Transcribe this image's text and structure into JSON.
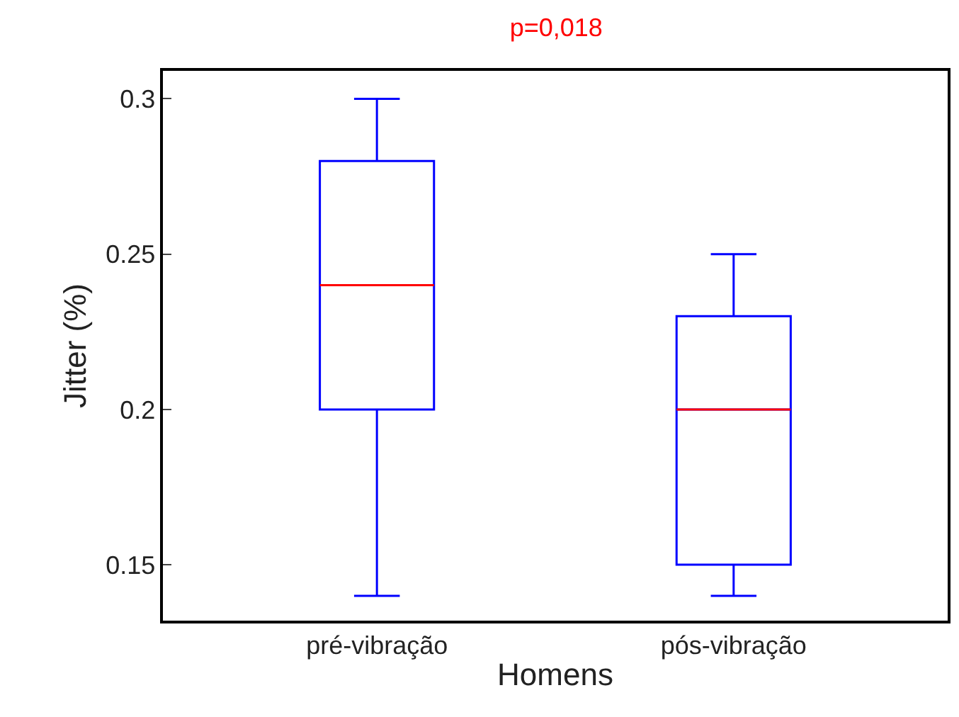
{
  "chart_data": {
    "type": "box",
    "title": "p=0,018",
    "xlabel": "Homens",
    "ylabel": "Jitter (%)",
    "categories": [
      "pré-vibração",
      "pós-vibração"
    ],
    "series": [
      {
        "color": "#0000ff",
        "boxes": [
          {
            "low": 0.14,
            "q1": 0.2,
            "median": 0.24,
            "q3": 0.28,
            "high": 0.3
          },
          {
            "low": 0.14,
            "q1": 0.15,
            "median": 0.2,
            "q3": 0.23,
            "high": 0.25
          }
        ]
      }
    ],
    "ylim": [
      0.132,
      0.309
    ],
    "yticks": [
      0.15,
      0.2,
      0.25,
      0.3
    ],
    "grid": false
  }
}
